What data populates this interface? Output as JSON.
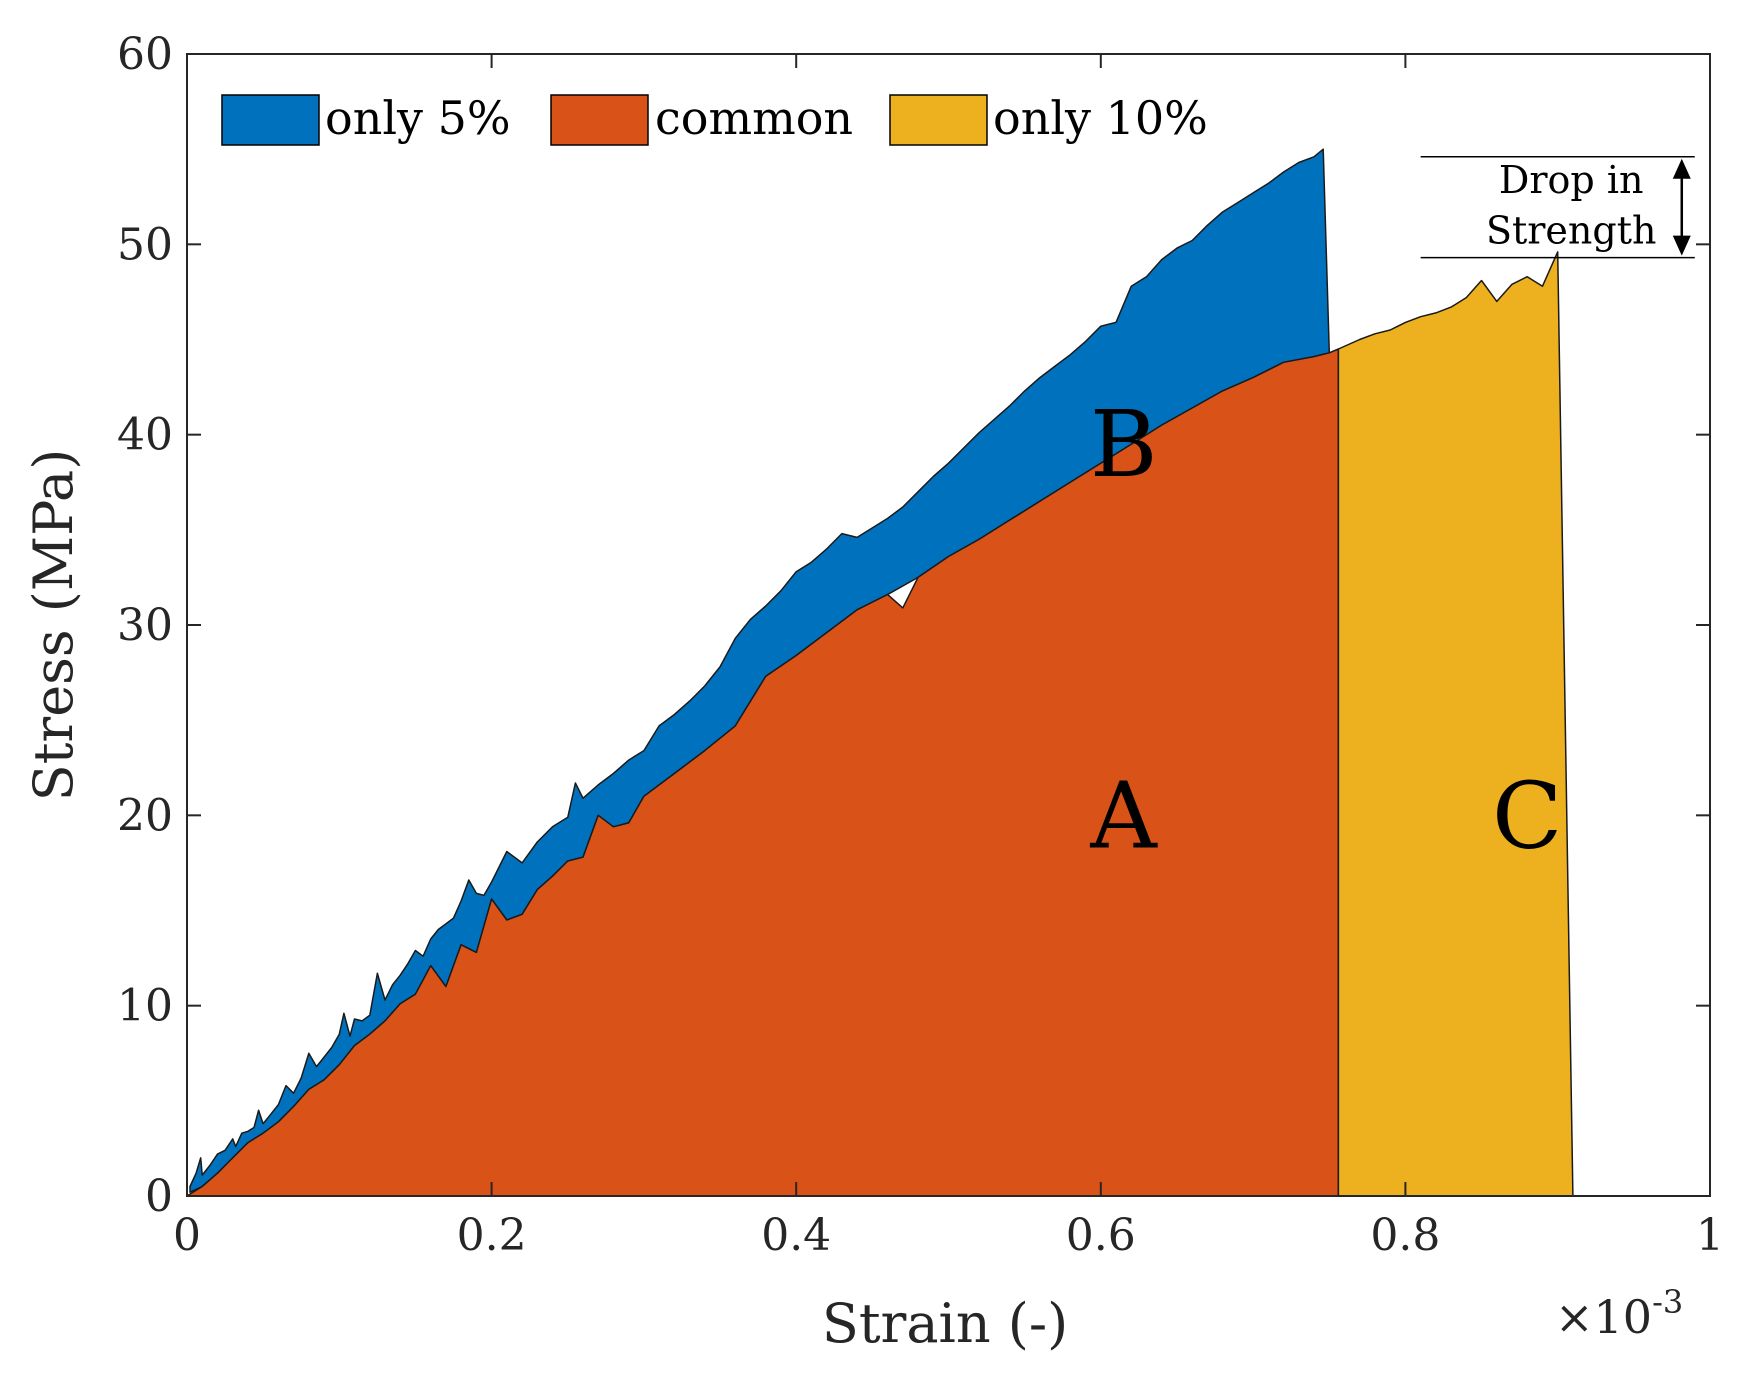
{
  "chart_data": {
    "type": "area",
    "xlabel": "Strain (-)",
    "ylabel": "Stress (MPa)",
    "x_multiplier": "×10",
    "x_multiplier_exponent": "-3",
    "xlim": [
      0,
      1
    ],
    "ylim": [
      0,
      60
    ],
    "xticks": [
      0,
      0.2,
      0.4,
      0.6,
      0.8,
      1
    ],
    "xtick_labels": [
      "0",
      "0.2",
      "0.4",
      "0.6",
      "0.8",
      "1"
    ],
    "yticks": [
      0,
      10,
      20,
      30,
      40,
      50,
      60
    ],
    "ytick_labels": [
      "0",
      "10",
      "20",
      "30",
      "40",
      "50",
      "60"
    ],
    "legend_position": "top-left",
    "colors": {
      "only5": "#0072BD",
      "common": "#D95319",
      "only10": "#EDB120"
    },
    "series": [
      {
        "name": "only 5%",
        "key": "only5",
        "points": [
          [
            0.002,
            0.5
          ],
          [
            0.006,
            1.2
          ],
          [
            0.009,
            2.0
          ],
          [
            0.01,
            1.1
          ],
          [
            0.015,
            1.6
          ],
          [
            0.02,
            2.2
          ],
          [
            0.025,
            2.4
          ],
          [
            0.03,
            3.0
          ],
          [
            0.032,
            2.6
          ],
          [
            0.036,
            3.3
          ],
          [
            0.04,
            3.4
          ],
          [
            0.044,
            3.6
          ],
          [
            0.047,
            4.5
          ],
          [
            0.05,
            3.8
          ],
          [
            0.055,
            4.3
          ],
          [
            0.06,
            4.8
          ],
          [
            0.065,
            5.8
          ],
          [
            0.07,
            5.4
          ],
          [
            0.075,
            6.2
          ],
          [
            0.08,
            7.5
          ],
          [
            0.085,
            6.8
          ],
          [
            0.09,
            7.3
          ],
          [
            0.095,
            7.8
          ],
          [
            0.1,
            8.5
          ],
          [
            0.103,
            9.6
          ],
          [
            0.107,
            8.4
          ],
          [
            0.11,
            9.3
          ],
          [
            0.115,
            9.2
          ],
          [
            0.12,
            9.5
          ],
          [
            0.125,
            11.7
          ],
          [
            0.13,
            10.3
          ],
          [
            0.135,
            11.1
          ],
          [
            0.14,
            11.6
          ],
          [
            0.145,
            12.2
          ],
          [
            0.15,
            12.9
          ],
          [
            0.155,
            12.6
          ],
          [
            0.16,
            13.5
          ],
          [
            0.165,
            14.0
          ],
          [
            0.17,
            14.3
          ],
          [
            0.175,
            14.6
          ],
          [
            0.18,
            15.5
          ],
          [
            0.185,
            16.6
          ],
          [
            0.19,
            15.9
          ],
          [
            0.195,
            15.8
          ],
          [
            0.2,
            16.5
          ],
          [
            0.21,
            18.1
          ],
          [
            0.22,
            17.5
          ],
          [
            0.23,
            18.6
          ],
          [
            0.24,
            19.4
          ],
          [
            0.25,
            19.9
          ],
          [
            0.255,
            21.7
          ],
          [
            0.26,
            20.9
          ],
          [
            0.27,
            21.6
          ],
          [
            0.28,
            22.2
          ],
          [
            0.29,
            22.9
          ],
          [
            0.3,
            23.4
          ],
          [
            0.31,
            24.7
          ],
          [
            0.32,
            25.3
          ],
          [
            0.33,
            26.0
          ],
          [
            0.34,
            26.8
          ],
          [
            0.35,
            27.8
          ],
          [
            0.36,
            29.3
          ],
          [
            0.37,
            30.3
          ],
          [
            0.38,
            31.0
          ],
          [
            0.39,
            31.8
          ],
          [
            0.4,
            32.8
          ],
          [
            0.41,
            33.3
          ],
          [
            0.42,
            34.0
          ],
          [
            0.43,
            34.8
          ],
          [
            0.44,
            34.6
          ],
          [
            0.45,
            35.1
          ],
          [
            0.46,
            35.6
          ],
          [
            0.47,
            36.2
          ],
          [
            0.48,
            37.0
          ],
          [
            0.49,
            37.8
          ],
          [
            0.5,
            38.5
          ],
          [
            0.51,
            39.3
          ],
          [
            0.52,
            40.1
          ],
          [
            0.53,
            40.8
          ],
          [
            0.54,
            41.5
          ],
          [
            0.55,
            42.3
          ],
          [
            0.56,
            43.0
          ],
          [
            0.57,
            43.6
          ],
          [
            0.58,
            44.2
          ],
          [
            0.59,
            44.9
          ],
          [
            0.6,
            45.7
          ],
          [
            0.61,
            45.9
          ],
          [
            0.62,
            47.8
          ],
          [
            0.63,
            48.3
          ],
          [
            0.64,
            49.2
          ],
          [
            0.65,
            49.8
          ],
          [
            0.66,
            50.2
          ],
          [
            0.67,
            51.0
          ],
          [
            0.68,
            51.7
          ],
          [
            0.69,
            52.2
          ],
          [
            0.7,
            52.7
          ],
          [
            0.71,
            53.2
          ],
          [
            0.72,
            53.8
          ],
          [
            0.73,
            54.3
          ],
          [
            0.74,
            54.6
          ],
          [
            0.746,
            55.0
          ],
          [
            0.75,
            44.3
          ],
          [
            0.74,
            44.1
          ],
          [
            0.72,
            43.8
          ],
          [
            0.7,
            43.0
          ],
          [
            0.68,
            42.3
          ],
          [
            0.66,
            41.4
          ],
          [
            0.64,
            40.5
          ],
          [
            0.62,
            39.5
          ],
          [
            0.6,
            38.5
          ],
          [
            0.58,
            37.5
          ],
          [
            0.56,
            36.5
          ],
          [
            0.54,
            35.5
          ],
          [
            0.52,
            34.5
          ],
          [
            0.5,
            33.6
          ],
          [
            0.48,
            32.5
          ],
          [
            0.46,
            31.6
          ],
          [
            0.44,
            30.8
          ],
          [
            0.42,
            29.6
          ],
          [
            0.4,
            28.4
          ],
          [
            0.38,
            27.3
          ],
          [
            0.36,
            24.7
          ],
          [
            0.34,
            23.4
          ],
          [
            0.32,
            22.2
          ],
          [
            0.3,
            21.0
          ],
          [
            0.29,
            19.6
          ],
          [
            0.28,
            19.4
          ],
          [
            0.27,
            20.0
          ],
          [
            0.26,
            17.8
          ],
          [
            0.25,
            17.6
          ],
          [
            0.24,
            16.8
          ],
          [
            0.23,
            16.1
          ],
          [
            0.22,
            14.8
          ],
          [
            0.21,
            14.5
          ],
          [
            0.2,
            15.6
          ],
          [
            0.19,
            12.8
          ],
          [
            0.18,
            13.2
          ],
          [
            0.17,
            11.0
          ],
          [
            0.16,
            12.1
          ],
          [
            0.15,
            10.6
          ],
          [
            0.14,
            10.1
          ],
          [
            0.13,
            9.2
          ],
          [
            0.12,
            8.5
          ],
          [
            0.11,
            7.9
          ],
          [
            0.1,
            6.9
          ],
          [
            0.09,
            6.1
          ],
          [
            0.08,
            5.6
          ],
          [
            0.07,
            4.7
          ],
          [
            0.06,
            3.9
          ],
          [
            0.05,
            3.3
          ],
          [
            0.04,
            2.8
          ],
          [
            0.03,
            2.0
          ],
          [
            0.02,
            1.2
          ],
          [
            0.01,
            0.5
          ],
          [
            0.002,
            0.2
          ]
        ]
      },
      {
        "name": "common",
        "key": "common",
        "points": [
          [
            0,
            0
          ],
          [
            0.01,
            0.5
          ],
          [
            0.02,
            1.2
          ],
          [
            0.03,
            2.0
          ],
          [
            0.04,
            2.8
          ],
          [
            0.05,
            3.3
          ],
          [
            0.06,
            3.9
          ],
          [
            0.07,
            4.7
          ],
          [
            0.08,
            5.6
          ],
          [
            0.09,
            6.1
          ],
          [
            0.1,
            6.9
          ],
          [
            0.11,
            7.9
          ],
          [
            0.12,
            8.5
          ],
          [
            0.13,
            9.2
          ],
          [
            0.14,
            10.1
          ],
          [
            0.15,
            10.6
          ],
          [
            0.16,
            12.1
          ],
          [
            0.17,
            11.0
          ],
          [
            0.18,
            13.2
          ],
          [
            0.19,
            12.8
          ],
          [
            0.2,
            15.6
          ],
          [
            0.21,
            14.5
          ],
          [
            0.22,
            14.8
          ],
          [
            0.23,
            16.1
          ],
          [
            0.24,
            16.8
          ],
          [
            0.25,
            17.6
          ],
          [
            0.26,
            17.8
          ],
          [
            0.27,
            20.0
          ],
          [
            0.28,
            19.4
          ],
          [
            0.29,
            19.6
          ],
          [
            0.3,
            21.0
          ],
          [
            0.32,
            22.2
          ],
          [
            0.34,
            23.4
          ],
          [
            0.36,
            24.7
          ],
          [
            0.38,
            27.3
          ],
          [
            0.4,
            28.4
          ],
          [
            0.42,
            29.6
          ],
          [
            0.44,
            30.8
          ],
          [
            0.46,
            31.6
          ],
          [
            0.47,
            30.9
          ],
          [
            0.48,
            32.5
          ],
          [
            0.5,
            33.6
          ],
          [
            0.52,
            34.5
          ],
          [
            0.54,
            35.5
          ],
          [
            0.56,
            36.5
          ],
          [
            0.58,
            37.5
          ],
          [
            0.6,
            38.5
          ],
          [
            0.62,
            39.5
          ],
          [
            0.64,
            40.5
          ],
          [
            0.66,
            41.4
          ],
          [
            0.68,
            42.3
          ],
          [
            0.7,
            43.0
          ],
          [
            0.72,
            43.8
          ],
          [
            0.74,
            44.1
          ],
          [
            0.75,
            44.3
          ],
          [
            0.756,
            44.5
          ],
          [
            0.756,
            0
          ]
        ]
      },
      {
        "name": "only 10%",
        "key": "only10",
        "points": [
          [
            0.756,
            0
          ],
          [
            0.756,
            44.5
          ],
          [
            0.77,
            45.0
          ],
          [
            0.78,
            45.3
          ],
          [
            0.79,
            45.5
          ],
          [
            0.8,
            45.9
          ],
          [
            0.81,
            46.2
          ],
          [
            0.82,
            46.4
          ],
          [
            0.83,
            46.7
          ],
          [
            0.84,
            47.2
          ],
          [
            0.85,
            48.1
          ],
          [
            0.86,
            47.0
          ],
          [
            0.87,
            47.9
          ],
          [
            0.88,
            48.3
          ],
          [
            0.89,
            47.8
          ],
          [
            0.9,
            49.6
          ],
          [
            0.91,
            0
          ]
        ]
      }
    ],
    "region_labels": [
      {
        "text": "A",
        "x": 0.615,
        "y": 20
      },
      {
        "text": "B",
        "x": 0.615,
        "y": 39.5
      },
      {
        "text": "C",
        "x": 0.88,
        "y": 20
      }
    ],
    "annotation": {
      "line1": "Drop in",
      "line2": "Strength",
      "y_top": 54.6,
      "y_bottom": 49.3,
      "x_start": 0.81,
      "x_end": 0.99
    }
  },
  "legend": {
    "items": [
      {
        "key": "only5",
        "label": "only 5%"
      },
      {
        "key": "common",
        "label": "common"
      },
      {
        "key": "only10",
        "label": "only 10%"
      }
    ]
  }
}
